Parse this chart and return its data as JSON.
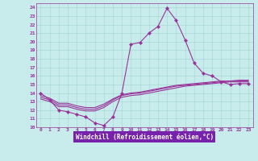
{
  "xlabel": "Windchill (Refroidissement éolien,°C)",
  "xlim": [
    -0.5,
    23.5
  ],
  "ylim": [
    10,
    24.5
  ],
  "yticks": [
    10,
    11,
    12,
    13,
    14,
    15,
    16,
    17,
    18,
    19,
    20,
    21,
    22,
    23,
    24
  ],
  "xticks": [
    0,
    1,
    2,
    3,
    4,
    5,
    6,
    7,
    8,
    9,
    10,
    11,
    12,
    13,
    14,
    15,
    16,
    17,
    18,
    19,
    20,
    21,
    22,
    23
  ],
  "bg_color": "#c8ecec",
  "line_color": "#993399",
  "grid_color": "#aad8d8",
  "xlabel_bg": "#7722aa",
  "line1_x": [
    0,
    1,
    2,
    3,
    4,
    5,
    6,
    7,
    8,
    9,
    10,
    11,
    12,
    13,
    14,
    15,
    16,
    17,
    18,
    19,
    20,
    21,
    22,
    23
  ],
  "line1_y": [
    14.0,
    13.2,
    12.0,
    11.8,
    11.5,
    11.2,
    10.5,
    10.2,
    11.2,
    14.0,
    19.7,
    19.9,
    21.0,
    21.8,
    23.9,
    22.5,
    20.2,
    17.5,
    16.3,
    16.0,
    15.3,
    15.0,
    15.1,
    15.1
  ],
  "line2_x": [
    0,
    1,
    2,
    3,
    4,
    5,
    6,
    7,
    8,
    9,
    10,
    11,
    12,
    13,
    14,
    15,
    16,
    17,
    18,
    19,
    20,
    21,
    22,
    23
  ],
  "line2_y": [
    13.5,
    13.2,
    12.6,
    12.6,
    12.3,
    12.1,
    12.1,
    12.5,
    13.2,
    13.7,
    13.9,
    14.0,
    14.2,
    14.4,
    14.6,
    14.8,
    14.9,
    15.0,
    15.1,
    15.2,
    15.3,
    15.4,
    15.4,
    15.4
  ],
  "line3_x": [
    0,
    1,
    2,
    3,
    4,
    5,
    6,
    7,
    8,
    9,
    10,
    11,
    12,
    13,
    14,
    15,
    16,
    17,
    18,
    19,
    20,
    21,
    22,
    23
  ],
  "line3_y": [
    13.7,
    13.4,
    12.8,
    12.8,
    12.5,
    12.3,
    12.3,
    12.7,
    13.3,
    13.8,
    14.0,
    14.1,
    14.3,
    14.5,
    14.7,
    14.9,
    15.0,
    15.1,
    15.2,
    15.3,
    15.4,
    15.4,
    15.5,
    15.5
  ],
  "line4_x": [
    0,
    1,
    2,
    3,
    4,
    5,
    6,
    7,
    8,
    9,
    10,
    11,
    12,
    13,
    14,
    15,
    16,
    17,
    18,
    19,
    20,
    21,
    22,
    23
  ],
  "line4_y": [
    13.3,
    13.0,
    12.4,
    12.4,
    12.1,
    11.9,
    11.9,
    12.3,
    13.0,
    13.5,
    13.7,
    13.8,
    14.0,
    14.2,
    14.4,
    14.6,
    14.8,
    14.9,
    15.0,
    15.1,
    15.2,
    15.3,
    15.3,
    15.3
  ]
}
